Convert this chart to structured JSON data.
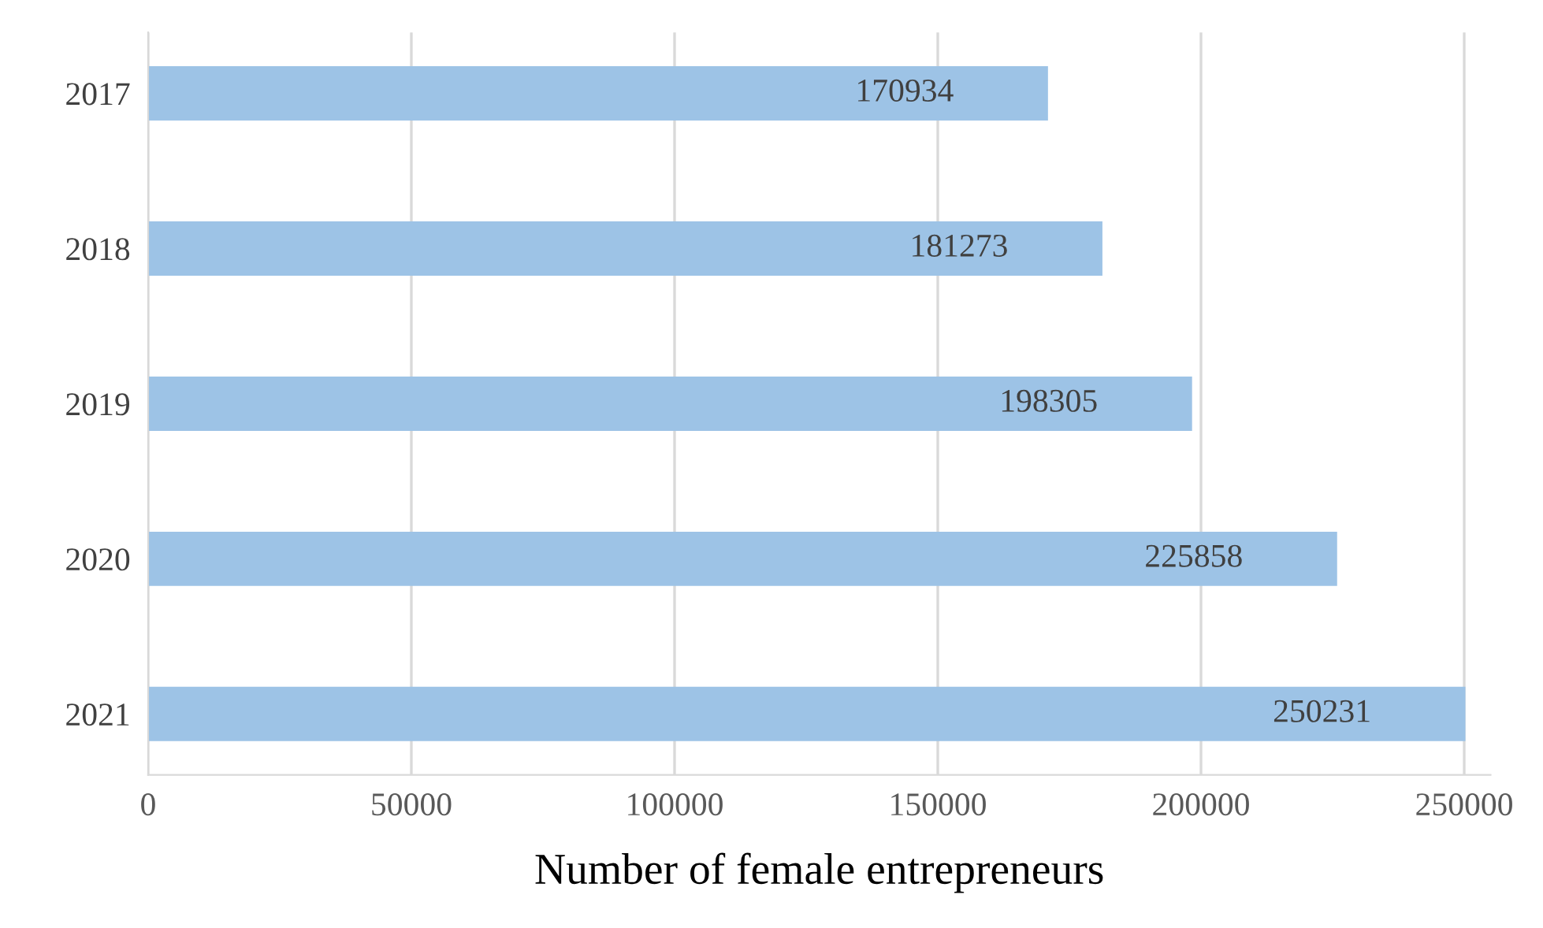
{
  "chart_data": {
    "type": "bar",
    "orientation": "horizontal",
    "xlabel": "Number of female entrepreneurs",
    "categories": [
      "2017",
      "2018",
      "2019",
      "2020",
      "2021"
    ],
    "values": [
      170934,
      181273,
      198305,
      225858,
      250231
    ],
    "color": "#9dc3e6",
    "xlim": [
      0,
      255000
    ],
    "xticks": [
      0,
      50000,
      100000,
      150000,
      200000,
      250000
    ],
    "grid": "x",
    "data_labels": true
  }
}
